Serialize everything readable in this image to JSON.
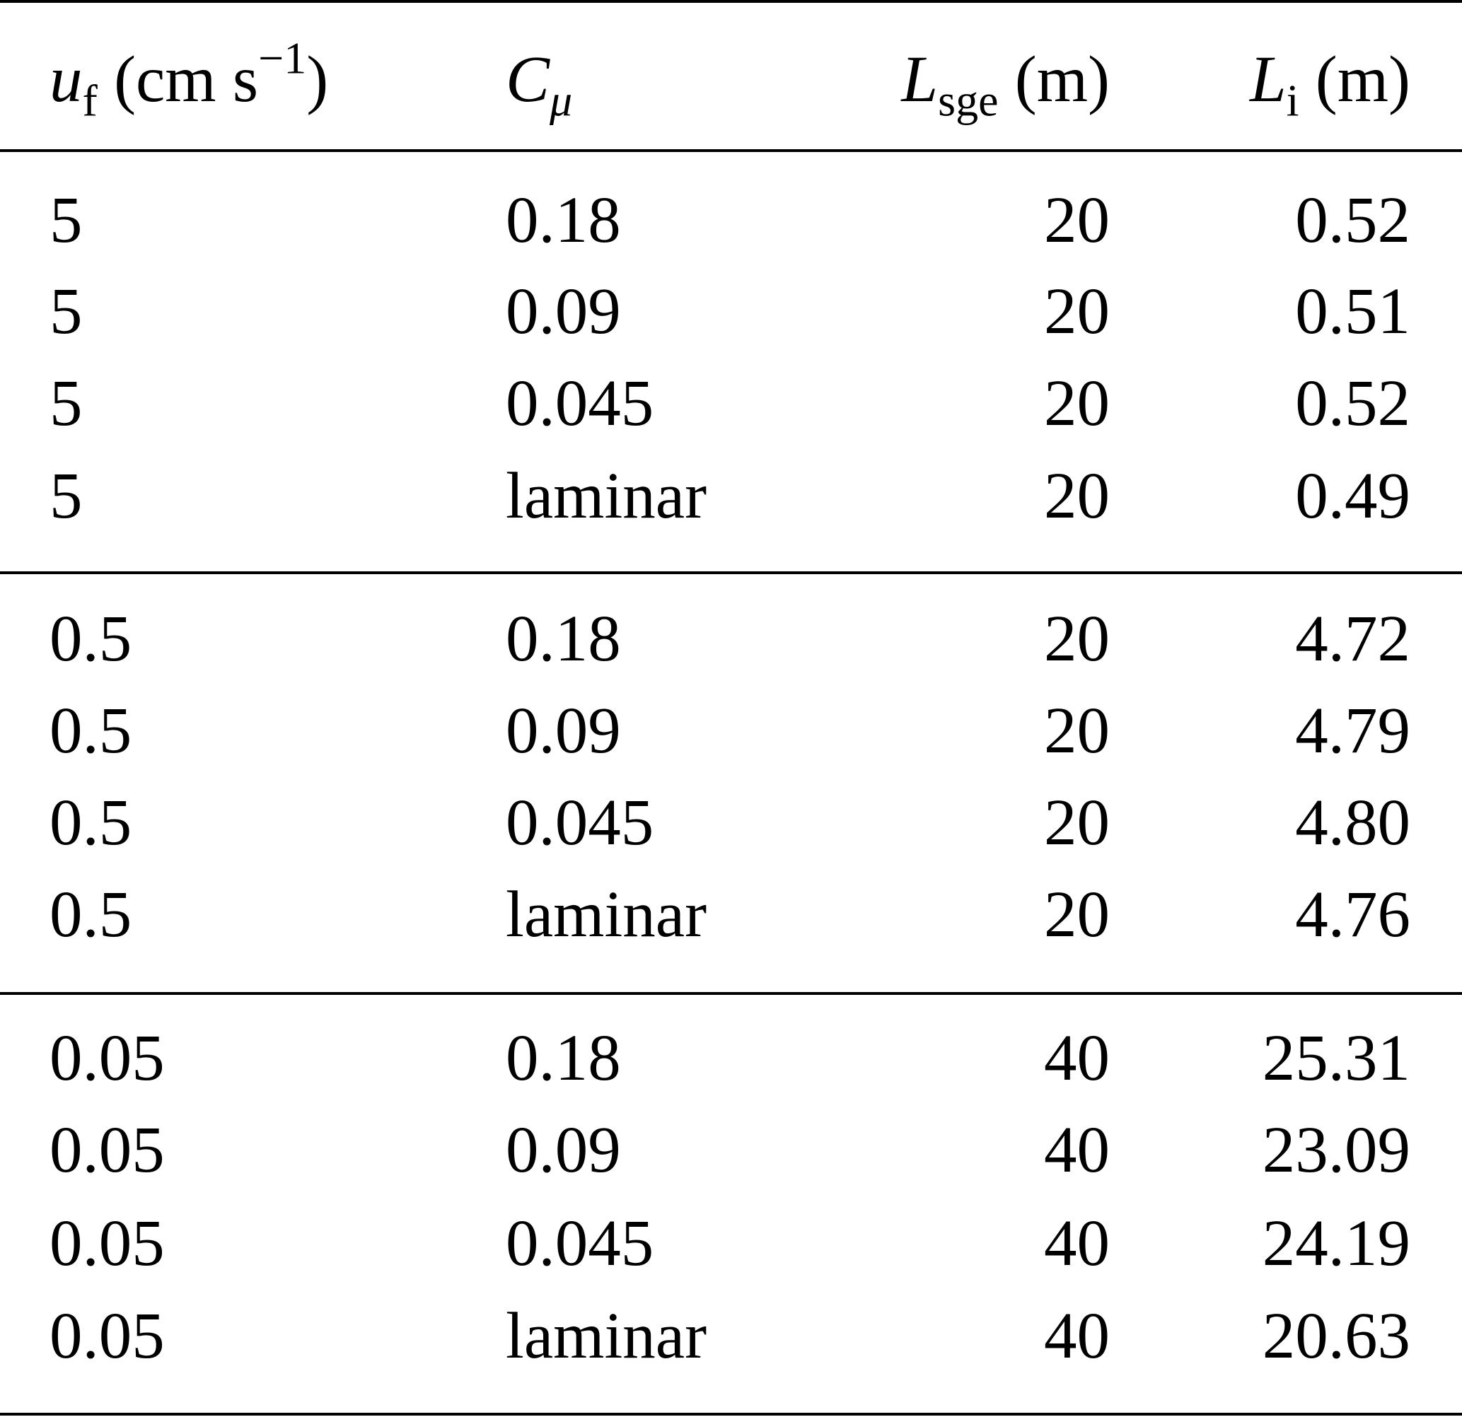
{
  "headers": {
    "uf_symbol": "u",
    "uf_subscript": "f",
    "uf_unit_open": "(cm s",
    "uf_unit_exp": "−1",
    "uf_unit_close": ")",
    "cmu_symbol": "C",
    "cmu_subscript": "μ",
    "lsge_symbol": "L",
    "lsge_subscript": "sge",
    "lsge_unit": "(m)",
    "li_symbol": "L",
    "li_subscript": "i",
    "li_unit": "(m)"
  },
  "rows": [
    {
      "uf": "5",
      "cmu": "0.18",
      "lsge": "20",
      "li": "0.52"
    },
    {
      "uf": "5",
      "cmu": "0.09",
      "lsge": "20",
      "li": "0.51"
    },
    {
      "uf": "5",
      "cmu": "0.045",
      "lsge": "20",
      "li": "0.52"
    },
    {
      "uf": "5",
      "cmu": "laminar",
      "lsge": "20",
      "li": "0.49"
    },
    {
      "uf": "0.5",
      "cmu": "0.18",
      "lsge": "20",
      "li": "4.72"
    },
    {
      "uf": "0.5",
      "cmu": "0.09",
      "lsge": "20",
      "li": "4.79"
    },
    {
      "uf": "0.5",
      "cmu": "0.045",
      "lsge": "20",
      "li": "4.80"
    },
    {
      "uf": "0.5",
      "cmu": "laminar",
      "lsge": "20",
      "li": "4.76"
    },
    {
      "uf": "0.05",
      "cmu": "0.18",
      "lsge": "40",
      "li": "25.31"
    },
    {
      "uf": "0.05",
      "cmu": "0.09",
      "lsge": "40",
      "li": "23.09"
    },
    {
      "uf": "0.05",
      "cmu": "0.045",
      "lsge": "40",
      "li": "24.19"
    },
    {
      "uf": "0.05",
      "cmu": "laminar",
      "lsge": "40",
      "li": "20.63"
    }
  ]
}
